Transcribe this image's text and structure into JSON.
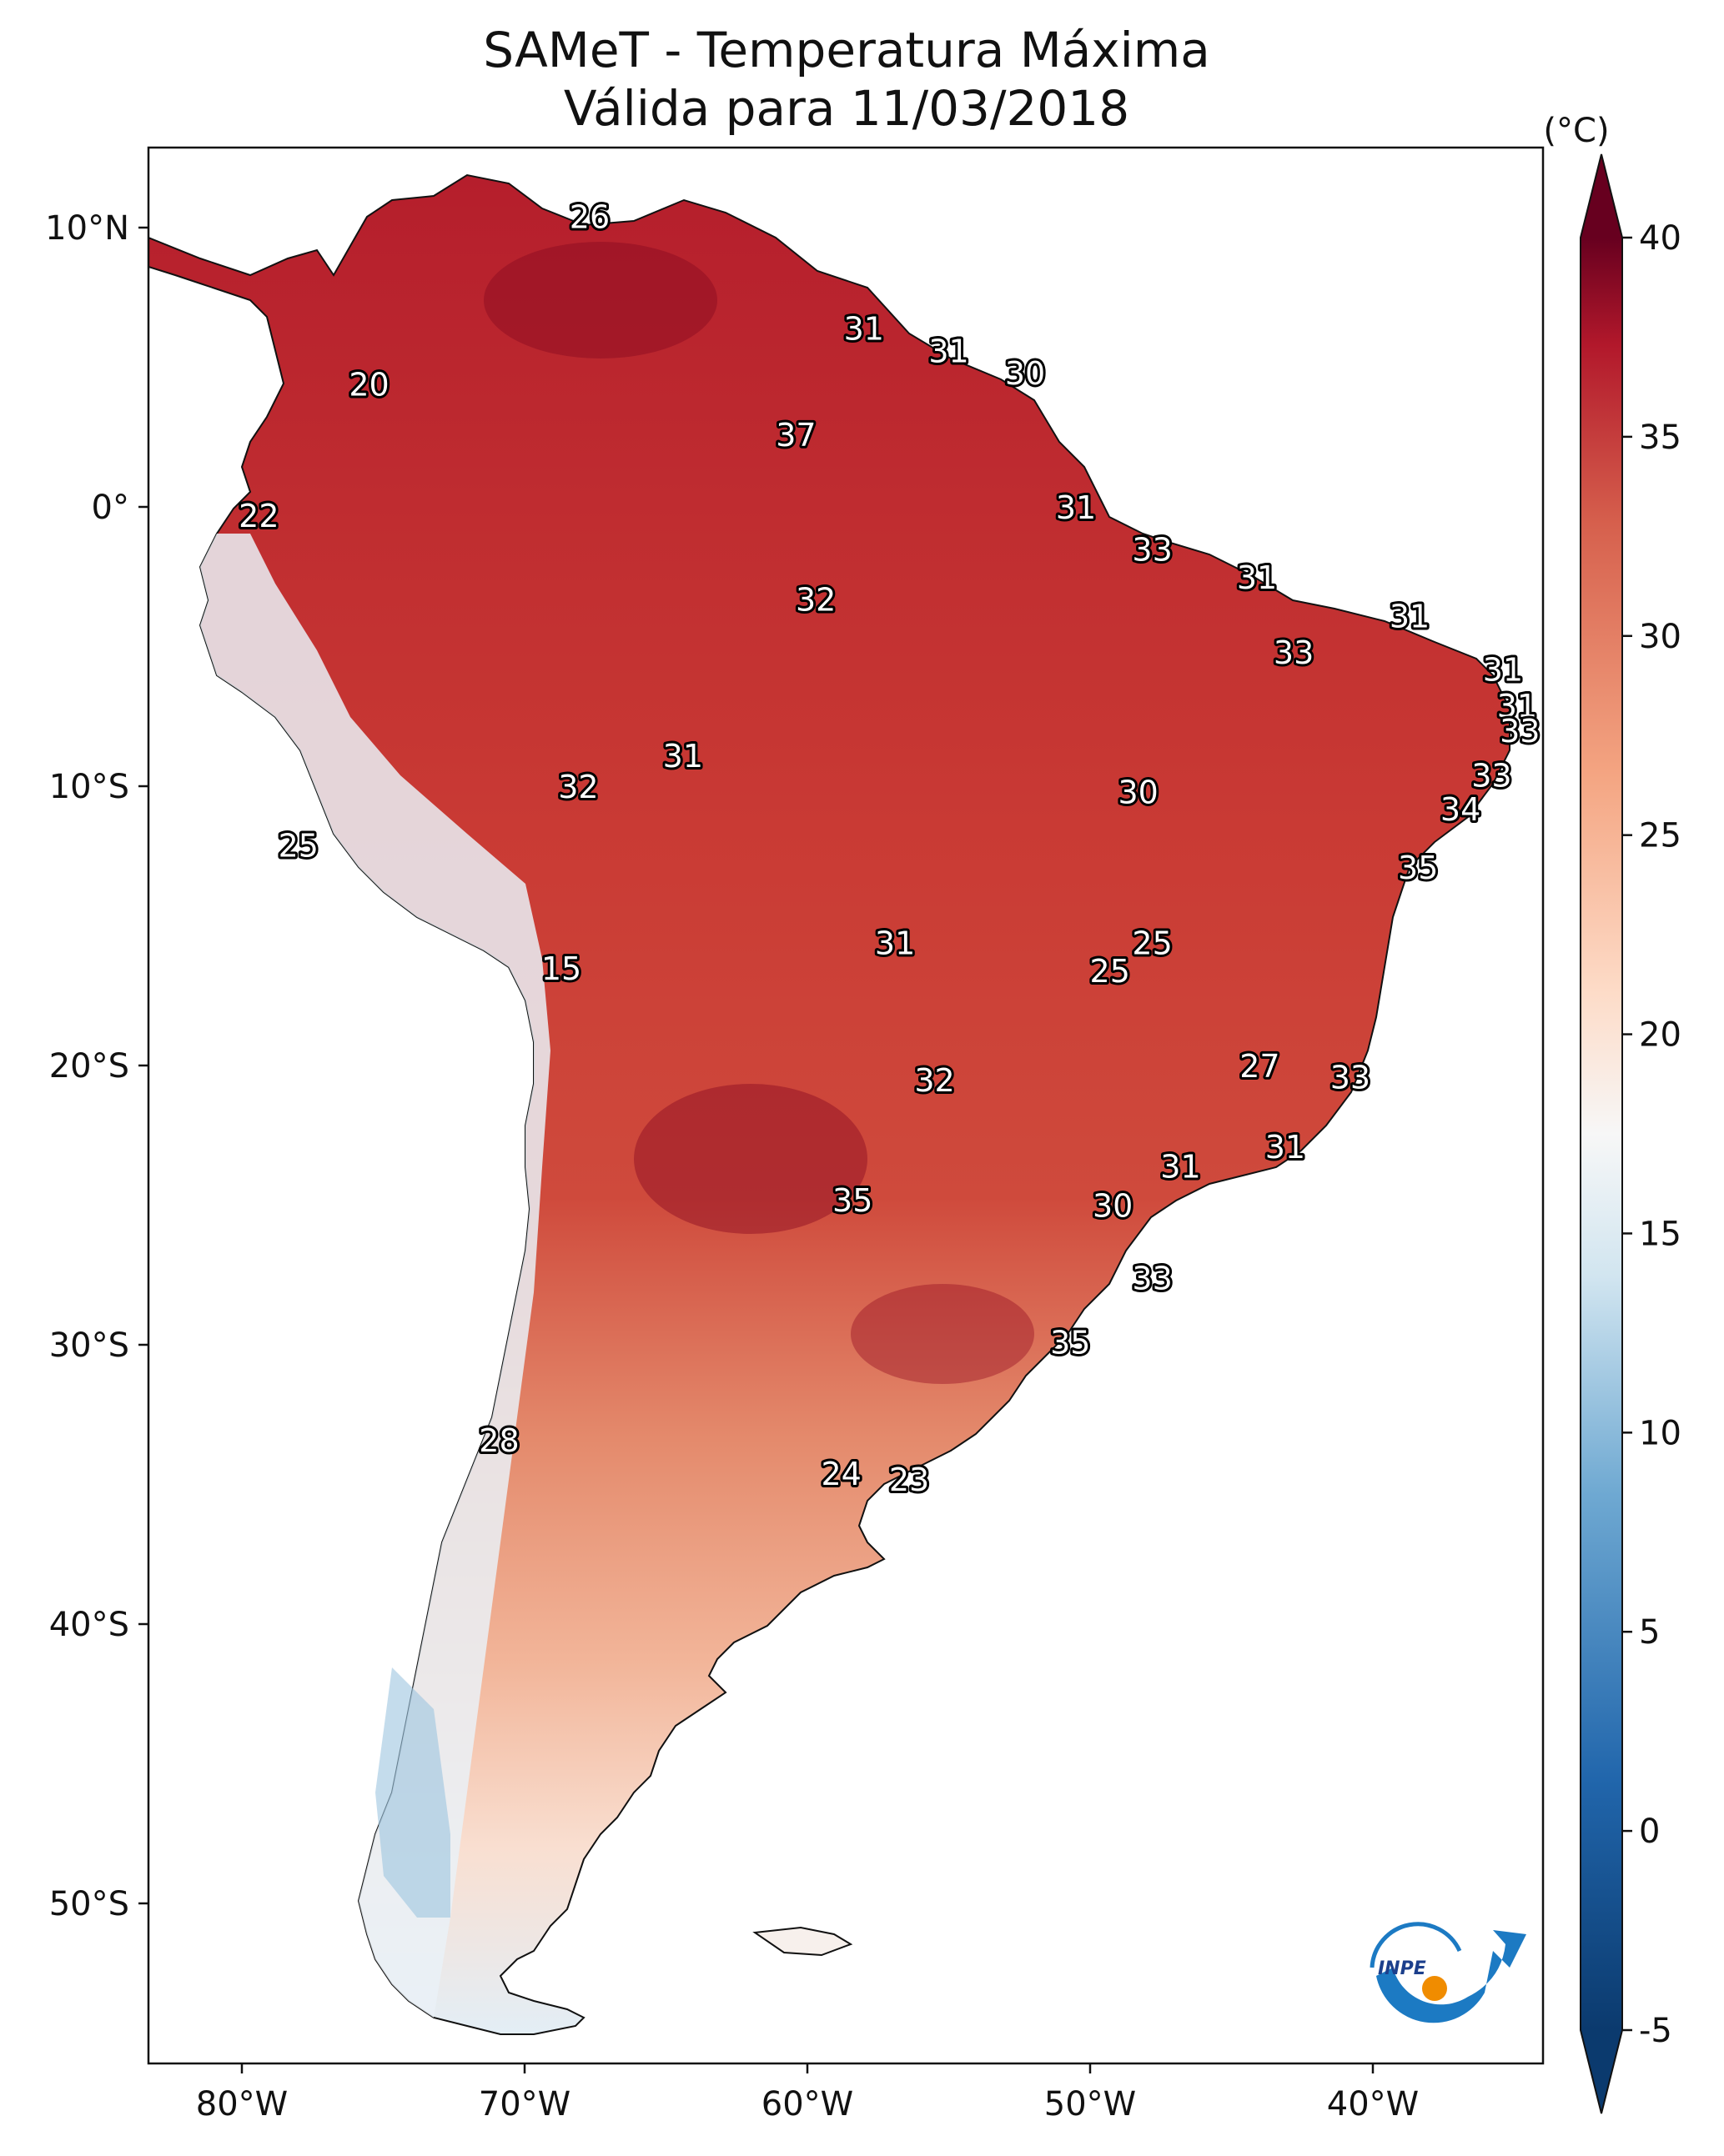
{
  "title_line1": "SAMeT - Temperatura Máxima",
  "title_line2": "Válida para 11/03/2018",
  "colorbar": {
    "unit": "(°C)",
    "ticks": [
      "40",
      "35",
      "30",
      "25",
      "20",
      "15",
      "10",
      "5",
      "0",
      "-5"
    ],
    "range": [
      -5,
      40
    ],
    "colors": {
      "min": "#0b3a6e",
      "low": "#3b7fbf",
      "mid": "#f7f7f7",
      "high": "#e6735a",
      "max": "#67001f"
    }
  },
  "axes": {
    "lon_ticks": [
      "80°W",
      "70°W",
      "60°W",
      "50°W",
      "40°W"
    ],
    "lat_ticks": [
      "10°N",
      "0°",
      "10°S",
      "20°S",
      "30°S",
      "40°S",
      "50°S"
    ]
  },
  "logo": {
    "text": "INPE",
    "icon": "inpe-logo-icon"
  },
  "temperature_labels": [
    {
      "v": "26",
      "lon": -67.7,
      "lat": 10.4
    },
    {
      "v": "20",
      "lon": -75.5,
      "lat": 4.4
    },
    {
      "v": "31",
      "lon": -58.0,
      "lat": 6.4
    },
    {
      "v": "31",
      "lon": -55.0,
      "lat": 5.6
    },
    {
      "v": "30",
      "lon": -52.3,
      "lat": 4.8
    },
    {
      "v": "37",
      "lon": -60.4,
      "lat": 2.6
    },
    {
      "v": "22",
      "lon": -79.4,
      "lat": -0.3
    },
    {
      "v": "31",
      "lon": -50.5,
      "lat": 0.0
    },
    {
      "v": "33",
      "lon": -47.8,
      "lat": -1.5
    },
    {
      "v": "32",
      "lon": -59.7,
      "lat": -3.3
    },
    {
      "v": "31",
      "lon": -44.1,
      "lat": -2.5
    },
    {
      "v": "31",
      "lon": -38.7,
      "lat": -3.9
    },
    {
      "v": "33",
      "lon": -42.8,
      "lat": -5.2
    },
    {
      "v": "31",
      "lon": -35.4,
      "lat": -5.8
    },
    {
      "v": "31",
      "lon": -34.9,
      "lat": -7.1
    },
    {
      "v": "33",
      "lon": -34.8,
      "lat": -8.0
    },
    {
      "v": "31",
      "lon": -64.4,
      "lat": -8.9
    },
    {
      "v": "32",
      "lon": -68.1,
      "lat": -10.0
    },
    {
      "v": "30",
      "lon": -48.3,
      "lat": -10.2
    },
    {
      "v": "33",
      "lon": -35.8,
      "lat": -9.6
    },
    {
      "v": "34",
      "lon": -36.9,
      "lat": -10.8
    },
    {
      "v": "25",
      "lon": -78.0,
      "lat": -12.1
    },
    {
      "v": "35",
      "lon": -38.4,
      "lat": -12.9
    },
    {
      "v": "15",
      "lon": -68.7,
      "lat": -16.5
    },
    {
      "v": "31",
      "lon": -56.9,
      "lat": -15.6
    },
    {
      "v": "25",
      "lon": -47.8,
      "lat": -15.6
    },
    {
      "v": "25",
      "lon": -49.3,
      "lat": -16.6
    },
    {
      "v": "27",
      "lon": -44.0,
      "lat": -20.0
    },
    {
      "v": "33",
      "lon": -40.8,
      "lat": -20.4
    },
    {
      "v": "32",
      "lon": -55.5,
      "lat": -20.5
    },
    {
      "v": "31",
      "lon": -43.1,
      "lat": -22.9
    },
    {
      "v": "31",
      "lon": -46.8,
      "lat": -23.6
    },
    {
      "v": "35",
      "lon": -58.4,
      "lat": -24.8
    },
    {
      "v": "30",
      "lon": -49.2,
      "lat": -25.0
    },
    {
      "v": "33",
      "lon": -47.8,
      "lat": -27.6
    },
    {
      "v": "35",
      "lon": -50.7,
      "lat": -29.9
    },
    {
      "v": "28",
      "lon": -70.9,
      "lat": -33.4
    },
    {
      "v": "24",
      "lon": -58.8,
      "lat": -34.6
    },
    {
      "v": "23",
      "lon": -56.4,
      "lat": -34.8
    }
  ]
}
